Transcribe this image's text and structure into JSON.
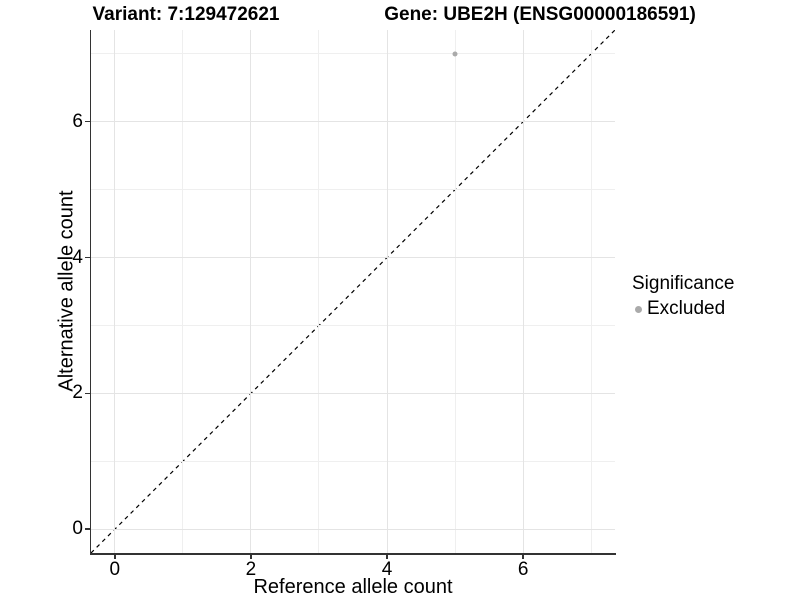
{
  "chart_data": {
    "type": "scatter",
    "title_left": "Variant: 7:129472621",
    "title_right": "Gene: UBE2H (ENSG00000186591)",
    "xlabel": "Reference allele count",
    "ylabel": "Alternative allele count",
    "xlim": [
      -0.35,
      7.35
    ],
    "ylim": [
      -0.35,
      7.35
    ],
    "x_major_ticks": [
      0,
      2,
      4,
      6
    ],
    "y_major_ticks": [
      0,
      2,
      4,
      6
    ],
    "x_minor_gridlines": [
      1,
      3,
      5,
      7
    ],
    "y_minor_gridlines": [
      1,
      3,
      5,
      7
    ],
    "grid": "on",
    "series": [
      {
        "name": "Excluded",
        "color": "#aaaaaa",
        "points": [
          {
            "x": 5,
            "y": 7
          }
        ]
      }
    ],
    "reference_line": {
      "slope": 1,
      "intercept": 0,
      "style": "dashed",
      "color": "#000000"
    },
    "legend": {
      "position": "right",
      "title": "Significance",
      "entries": [
        {
          "label": "Excluded",
          "color": "#aaaaaa"
        }
      ]
    }
  },
  "colors": {
    "background": "#ffffff",
    "grid_major": "#e4e4e4",
    "grid_minor": "#efefef",
    "axis_line": "#333333",
    "text": "#000000",
    "point": "#aaaaaa"
  }
}
